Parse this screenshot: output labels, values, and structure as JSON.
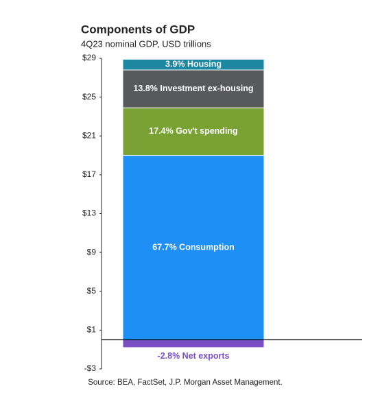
{
  "chart_data": {
    "type": "stacked_bar",
    "title": "Components of GDP",
    "subtitle": "4Q23 nominal GDP, USD trillions",
    "source": "Source: BEA, FactSet, J.P. Morgan Asset Management.",
    "series": [
      {
        "name": "67.7% Consumption",
        "color": "#1e8ff5",
        "values": [
          19.0
        ]
      },
      {
        "name": "17.4% Gov't spending",
        "color": "#7aa133",
        "values": [
          4.9
        ]
      },
      {
        "name": "13.8% Investment ex-housing",
        "color": "#58595b",
        "values": [
          3.9
        ]
      },
      {
        "name": "3.9% Housing",
        "color": "#1b87a0",
        "values": [
          1.1
        ]
      },
      {
        "name": "-2.8% Net exports",
        "color": "#7b4fc4",
        "values": [
          -0.8
        ]
      }
    ],
    "ylim": [
      -3,
      29
    ],
    "yticks": [
      {
        "value": -3,
        "label": "-$3"
      },
      {
        "value": 1,
        "label": "$1"
      },
      {
        "value": 5,
        "label": "$5"
      },
      {
        "value": 9,
        "label": "$9"
      },
      {
        "value": 13,
        "label": "$13"
      },
      {
        "value": 17,
        "label": "$17"
      },
      {
        "value": 21,
        "label": "$21"
      },
      {
        "value": 25,
        "label": "$25"
      },
      {
        "value": 29,
        "label": "$29"
      }
    ]
  }
}
